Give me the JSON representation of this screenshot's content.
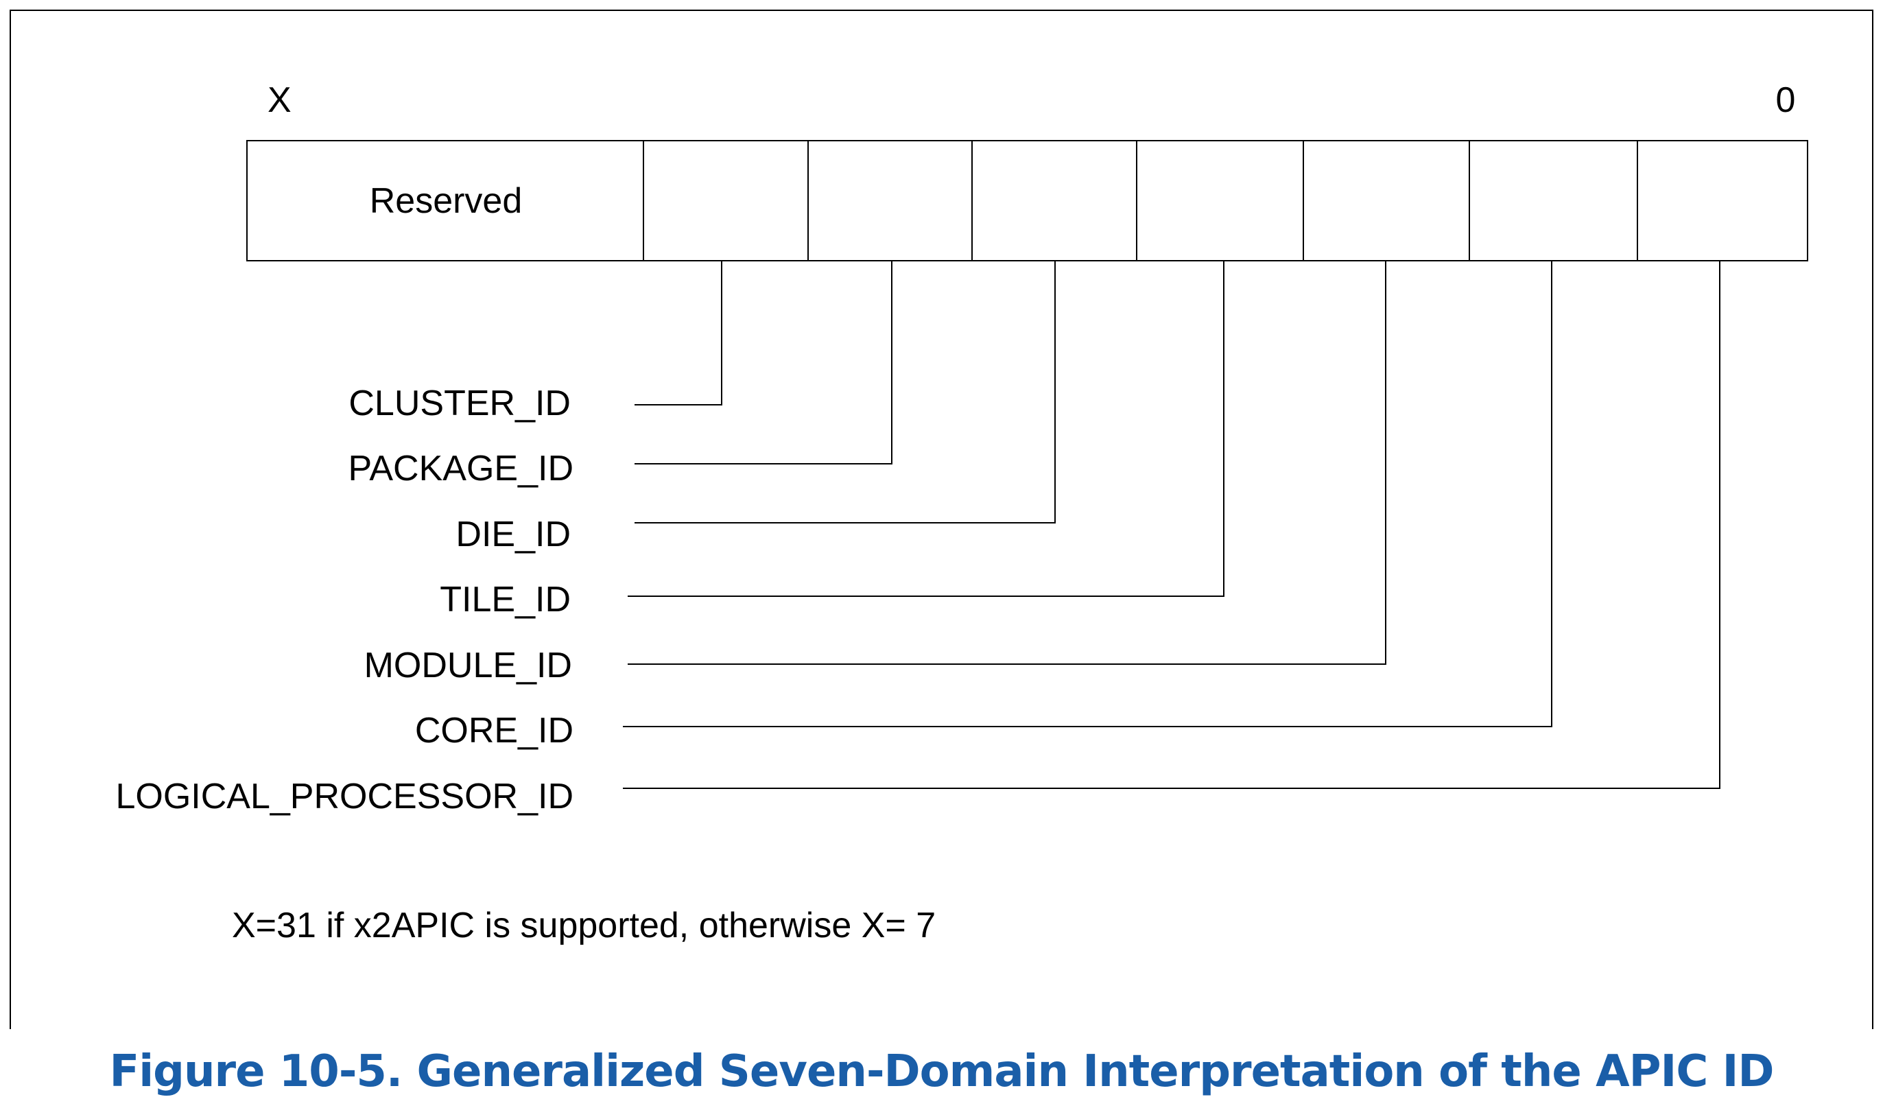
{
  "diagram": {
    "high_bit_label": "X",
    "low_bit_label": "0",
    "reserved_label": "Reserved",
    "fields": [
      "CLUSTER_ID",
      "PACKAGE_ID",
      "DIE_ID",
      "TILE_ID",
      "MODULE_ID",
      "CORE_ID",
      "LOGICAL_PROCESSOR_ID"
    ],
    "note": "X=31 if x2APIC is supported, otherwise X= 7"
  },
  "caption": "Figure 10-5.  Generalized Seven-Domain Interpretation of the APIC ID",
  "colors": {
    "line": "#000000",
    "caption": "#1a5ea8"
  }
}
